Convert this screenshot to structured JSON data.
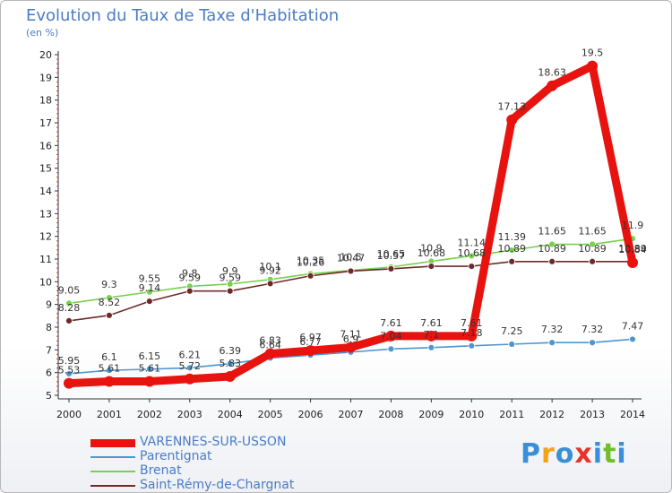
{
  "title": "Evolution du Taux de Taxe d'Habitation",
  "unit_label": "(en %)",
  "logo": {
    "text": "Proxiti",
    "colors": [
      "#3a8fd6",
      "#f3a21c",
      "#3a8fd6",
      "#e8332a",
      "#3a8fd6",
      "#6fbf2a",
      "#3a8fd6"
    ]
  },
  "chart_data": {
    "type": "line",
    "title": "Evolution du Taux de Taxe d'Habitation",
    "ylabel": "(en %)",
    "x": [
      2000,
      2001,
      2002,
      2003,
      2004,
      2005,
      2006,
      2007,
      2008,
      2009,
      2010,
      2011,
      2012,
      2013,
      2014
    ],
    "ylim": [
      5,
      20
    ],
    "yticks": [
      5,
      6,
      7,
      8,
      9,
      10,
      11,
      12,
      13,
      14,
      15,
      16,
      17,
      18,
      19,
      20
    ],
    "grid": false,
    "legend_position": "bottom-left",
    "series": [
      {
        "name": "VARENNES-SUR-USSON",
        "color": "#e8130f",
        "values": [
          5.53,
          5.61,
          5.61,
          5.72,
          5.83,
          6.83,
          6.97,
          7.11,
          7.61,
          7.61,
          7.61,
          17.13,
          18.63,
          19.5,
          10.84
        ],
        "labels": [
          "5.53",
          "5.61",
          "5.61",
          "5.72",
          "5.83",
          "6.83",
          "6.97",
          "7.11",
          "7.61",
          "7.61",
          "7.61",
          "17.13",
          "18.63",
          "19.5",
          "10.84"
        ]
      },
      {
        "name": "Parentignat",
        "color": "#4d96d0",
        "values": [
          5.95,
          6.1,
          6.15,
          6.21,
          6.39,
          6.64,
          6.77,
          6.9,
          7.04,
          7.1,
          7.18,
          7.25,
          7.32,
          7.32,
          7.47
        ],
        "labels": [
          "5.95",
          "6.1",
          "6.15",
          "6.21",
          "6.39",
          "6.64",
          "6.77",
          "6.9",
          "7.04",
          "7.1",
          "7.18",
          "7.25",
          "7.32",
          "7.32",
          "7.47"
        ]
      },
      {
        "name": "Brenat",
        "color": "#77d14b",
        "values": [
          9.05,
          9.3,
          9.55,
          9.8,
          9.9,
          10.1,
          10.35,
          10.5,
          10.65,
          10.9,
          11.14,
          11.39,
          11.65,
          11.65,
          11.9
        ],
        "labels": [
          "9.05",
          "9.3",
          "9.55",
          "9.8",
          "9.9",
          "10.1",
          "10.35",
          "10.5",
          "10.65",
          "10.9",
          "11.14",
          "11.39",
          "11.65",
          "11.65",
          "11.9"
        ]
      },
      {
        "name": "Saint-Rémy-de-Chargnat",
        "color": "#6e2a2a",
        "values": [
          8.28,
          8.52,
          9.14,
          9.59,
          9.59,
          9.92,
          10.26,
          10.47,
          10.57,
          10.68,
          10.68,
          10.89,
          10.89,
          10.89,
          10.89
        ],
        "labels": [
          "8.28",
          "8.52",
          "9.14",
          "9.59",
          "9.59",
          "9.92",
          "10.26",
          "10.47",
          "10.57",
          "10.68",
          "10.68",
          "10.89",
          "10.89",
          "10.89",
          "10.89"
        ]
      }
    ]
  }
}
